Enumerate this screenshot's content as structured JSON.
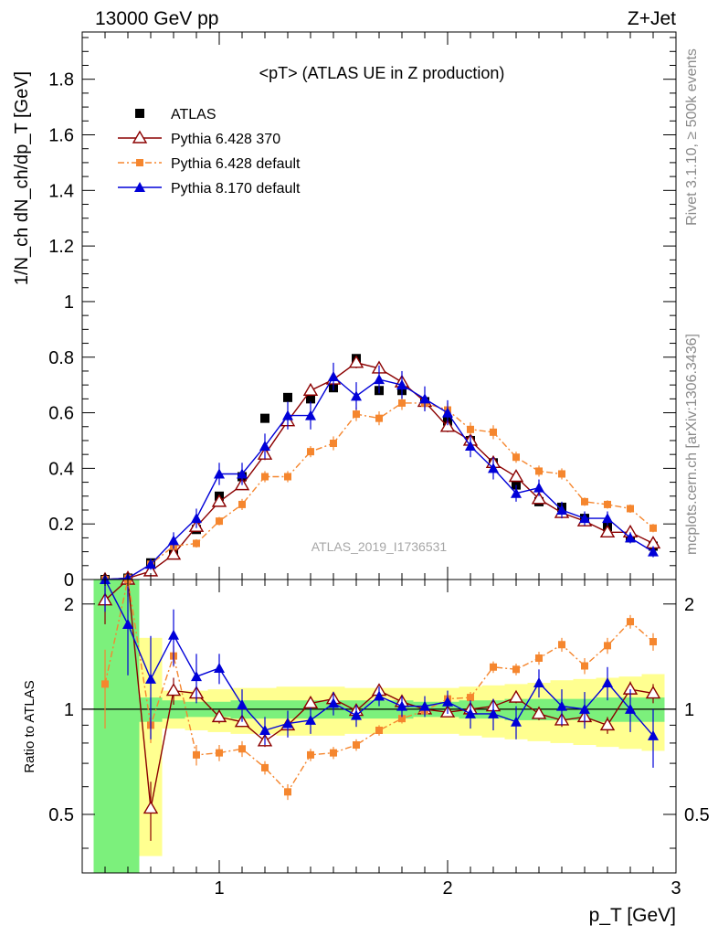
{
  "header": {
    "left": "13000 GeV pp",
    "right": "Z+Jet",
    "rivet": "Rivet 3.1.10, ≥ 500k events",
    "site": "mcplots.cern.ch [arXiv:1306.3436]",
    "watermark": "ATLAS_2019_I1736531"
  },
  "chart_data": [
    {
      "type": "scatter",
      "title": "<pT> (ATLAS UE in Z production)",
      "ylabel": "1/N_ch dN_ch/dp_T [GeV]",
      "xlabel": "p_T [GeV]",
      "xlim": [
        0.4,
        3.0
      ],
      "ylim": [
        0,
        1.97
      ],
      "x_ticks": [
        "1",
        "2",
        "3"
      ],
      "y_ticks": [
        "0",
        "0.2",
        "0.4",
        "0.6",
        "0.8",
        "1",
        "1.2",
        "1.4",
        "1.6",
        "1.8"
      ],
      "legend_position": "top-left",
      "x": [
        0.5,
        0.6,
        0.7,
        0.8,
        0.9,
        1.0,
        1.1,
        1.2,
        1.3,
        1.4,
        1.5,
        1.6,
        1.7,
        1.8,
        1.9,
        2.0,
        2.1,
        2.2,
        2.3,
        2.4,
        2.5,
        2.6,
        2.7,
        2.8,
        2.9
      ],
      "series": [
        {
          "name": "ATLAS",
          "color": "#000000",
          "marker": "square",
          "line": "none",
          "values": [
            0.0,
            0.005,
            0.06,
            0.09,
            0.18,
            0.3,
            0.37,
            0.58,
            0.655,
            0.65,
            0.69,
            0.795,
            0.68,
            0.68,
            0.64,
            0.57,
            0.5,
            0.42,
            0.34,
            0.28,
            0.26,
            0.22,
            0.19,
            0.15,
            0.12
          ],
          "errors": [
            0,
            0,
            0,
            0,
            0,
            0,
            0,
            0,
            0,
            0,
            0,
            0,
            0,
            0,
            0,
            0,
            0,
            0,
            0,
            0,
            0,
            0,
            0,
            0,
            0
          ]
        },
        {
          "name": "Pythia 6.428 370",
          "color": "#8b0000",
          "marker": "triangle-open",
          "line": "solid",
          "values": [
            0.0,
            0.005,
            0.03,
            0.09,
            0.19,
            0.28,
            0.34,
            0.45,
            0.57,
            0.68,
            0.72,
            0.78,
            0.76,
            0.71,
            0.64,
            0.55,
            0.5,
            0.42,
            0.37,
            0.29,
            0.24,
            0.21,
            0.17,
            0.17,
            0.13
          ],
          "errors": [
            0.005,
            0.005,
            0.01,
            0.01,
            0.015,
            0.015,
            0.015,
            0.02,
            0.02,
            0.02,
            0.02,
            0.02,
            0.02,
            0.02,
            0.02,
            0.02,
            0.02,
            0.02,
            0.015,
            0.015,
            0.015,
            0.015,
            0.015,
            0.015,
            0.015
          ]
        },
        {
          "name": "Pythia 6.428 default",
          "color": "#f5862e",
          "marker": "square-small",
          "line": "dashdot",
          "values": [
            0.0,
            0.005,
            0.055,
            0.12,
            0.13,
            0.21,
            0.27,
            0.37,
            0.37,
            0.46,
            0.49,
            0.595,
            0.58,
            0.635,
            0.635,
            0.61,
            0.54,
            0.53,
            0.44,
            0.39,
            0.38,
            0.28,
            0.27,
            0.255,
            0.185
          ],
          "errors": [
            0.005,
            0.005,
            0.01,
            0.01,
            0.015,
            0.015,
            0.02,
            0.02,
            0.02,
            0.02,
            0.025,
            0.025,
            0.025,
            0.025,
            0.025,
            0.025,
            0.025,
            0.025,
            0.02,
            0.02,
            0.02,
            0.015,
            0.015,
            0.015,
            0.015
          ]
        },
        {
          "name": "Pythia 8.170 default",
          "color": "#0000d8",
          "marker": "triangle",
          "line": "solid",
          "values": [
            0.0,
            0.005,
            0.055,
            0.14,
            0.22,
            0.38,
            0.38,
            0.48,
            0.59,
            0.59,
            0.73,
            0.66,
            0.72,
            0.7,
            0.65,
            0.6,
            0.48,
            0.4,
            0.31,
            0.33,
            0.25,
            0.22,
            0.22,
            0.15,
            0.1
          ],
          "errors": [
            0.005,
            0.005,
            0.02,
            0.03,
            0.035,
            0.04,
            0.04,
            0.045,
            0.05,
            0.05,
            0.05,
            0.05,
            0.05,
            0.05,
            0.045,
            0.045,
            0.04,
            0.04,
            0.03,
            0.03,
            0.03,
            0.025,
            0.025,
            0.02,
            0.02
          ]
        }
      ]
    },
    {
      "type": "scatter",
      "ylabel": "Ratio to ATLAS",
      "xlabel": "p_T [GeV]",
      "xlim": [
        0.4,
        3.0
      ],
      "ylim": [
        0.34,
        2.35
      ],
      "y_ticks": [
        "0.5",
        "1",
        "2"
      ],
      "x": [
        0.5,
        0.6,
        0.7,
        0.8,
        0.9,
        1.0,
        1.1,
        1.2,
        1.3,
        1.4,
        1.5,
        1.6,
        1.7,
        1.8,
        1.9,
        2.0,
        2.1,
        2.2,
        2.3,
        2.4,
        2.5,
        2.6,
        2.7,
        2.8,
        2.9
      ],
      "reference_line": 1,
      "bands": {
        "inner_color": "#7cf07c",
        "outer_color": "#ffff90",
        "inner": [
          [
            0.3,
            2.35
          ],
          [
            0.3,
            2.35
          ],
          [
            0.92,
            1.08
          ],
          [
            0.94,
            1.06
          ],
          [
            0.95,
            1.05
          ],
          [
            0.95,
            1.05
          ],
          [
            0.94,
            1.06
          ],
          [
            0.94,
            1.06
          ],
          [
            0.94,
            1.06
          ],
          [
            0.94,
            1.06
          ],
          [
            0.94,
            1.06
          ],
          [
            0.94,
            1.06
          ],
          [
            0.94,
            1.06
          ],
          [
            0.94,
            1.06
          ],
          [
            0.95,
            1.05
          ],
          [
            0.95,
            1.05
          ],
          [
            0.94,
            1.06
          ],
          [
            0.94,
            1.06
          ],
          [
            0.93,
            1.07
          ],
          [
            0.93,
            1.07
          ],
          [
            0.93,
            1.07
          ],
          [
            0.93,
            1.07
          ],
          [
            0.92,
            1.08
          ],
          [
            0.92,
            1.08
          ],
          [
            0.92,
            1.08
          ]
        ],
        "outer": [
          [
            0.3,
            2.35
          ],
          [
            0.3,
            2.35
          ],
          [
            0.38,
            1.6
          ],
          [
            0.88,
            1.13
          ],
          [
            0.87,
            1.13
          ],
          [
            0.86,
            1.14
          ],
          [
            0.85,
            1.15
          ],
          [
            0.85,
            1.15
          ],
          [
            0.84,
            1.16
          ],
          [
            0.84,
            1.16
          ],
          [
            0.84,
            1.16
          ],
          [
            0.85,
            1.15
          ],
          [
            0.85,
            1.15
          ],
          [
            0.85,
            1.15
          ],
          [
            0.85,
            1.15
          ],
          [
            0.85,
            1.15
          ],
          [
            0.84,
            1.16
          ],
          [
            0.83,
            1.17
          ],
          [
            0.82,
            1.18
          ],
          [
            0.81,
            1.19
          ],
          [
            0.8,
            1.21
          ],
          [
            0.79,
            1.22
          ],
          [
            0.78,
            1.23
          ],
          [
            0.77,
            1.24
          ],
          [
            0.76,
            1.26
          ]
        ]
      },
      "series": [
        {
          "name": "Pythia 6.428 370",
          "color": "#8b0000",
          "marker": "triangle-open",
          "line": "solid",
          "values": [
            2.05,
            2.4,
            0.52,
            1.13,
            1.11,
            0.95,
            0.92,
            0.81,
            0.9,
            1.04,
            1.07,
            0.99,
            1.13,
            1.05,
            1.0,
            0.98,
            1.0,
            1.02,
            1.08,
            0.97,
            0.93,
            0.95,
            0.9,
            1.14,
            1.11
          ],
          "errors": [
            0.3,
            0.3,
            0.1,
            0.1,
            0.05,
            0.04,
            0.03,
            0.03,
            0.03,
            0.03,
            0.03,
            0.03,
            0.03,
            0.03,
            0.03,
            0.03,
            0.03,
            0.03,
            0.04,
            0.04,
            0.04,
            0.05,
            0.05,
            0.06,
            0.07
          ]
        },
        {
          "name": "Pythia 6.428 default",
          "color": "#f5862e",
          "marker": "square-small",
          "line": "dashdot",
          "values": [
            1.18,
            2.4,
            0.9,
            1.42,
            0.74,
            0.75,
            0.77,
            0.68,
            0.58,
            0.74,
            0.75,
            0.79,
            0.87,
            0.94,
            0.99,
            1.07,
            1.08,
            1.32,
            1.3,
            1.4,
            1.53,
            1.33,
            1.52,
            1.78,
            1.56
          ],
          "errors": [
            0.3,
            0.3,
            0.1,
            0.1,
            0.05,
            0.04,
            0.04,
            0.03,
            0.03,
            0.03,
            0.03,
            0.03,
            0.03,
            0.03,
            0.03,
            0.03,
            0.04,
            0.05,
            0.05,
            0.06,
            0.07,
            0.07,
            0.08,
            0.08,
            0.09
          ]
        },
        {
          "name": "Pythia 8.170 default",
          "color": "#0000d8",
          "marker": "triangle",
          "line": "solid",
          "values": [
            2.4,
            1.75,
            1.22,
            1.63,
            1.24,
            1.31,
            1.03,
            0.87,
            0.91,
            0.93,
            1.04,
            0.96,
            1.09,
            1.02,
            1.02,
            1.05,
            0.97,
            0.97,
            0.92,
            1.19,
            1.02,
            1.0,
            1.19,
            1.0,
            0.84
          ],
          "errors": [
            0.5,
            0.5,
            0.4,
            0.3,
            0.2,
            0.13,
            0.11,
            0.08,
            0.08,
            0.08,
            0.08,
            0.07,
            0.07,
            0.07,
            0.07,
            0.08,
            0.09,
            0.1,
            0.1,
            0.11,
            0.12,
            0.12,
            0.13,
            0.14,
            0.16
          ]
        }
      ]
    }
  ]
}
